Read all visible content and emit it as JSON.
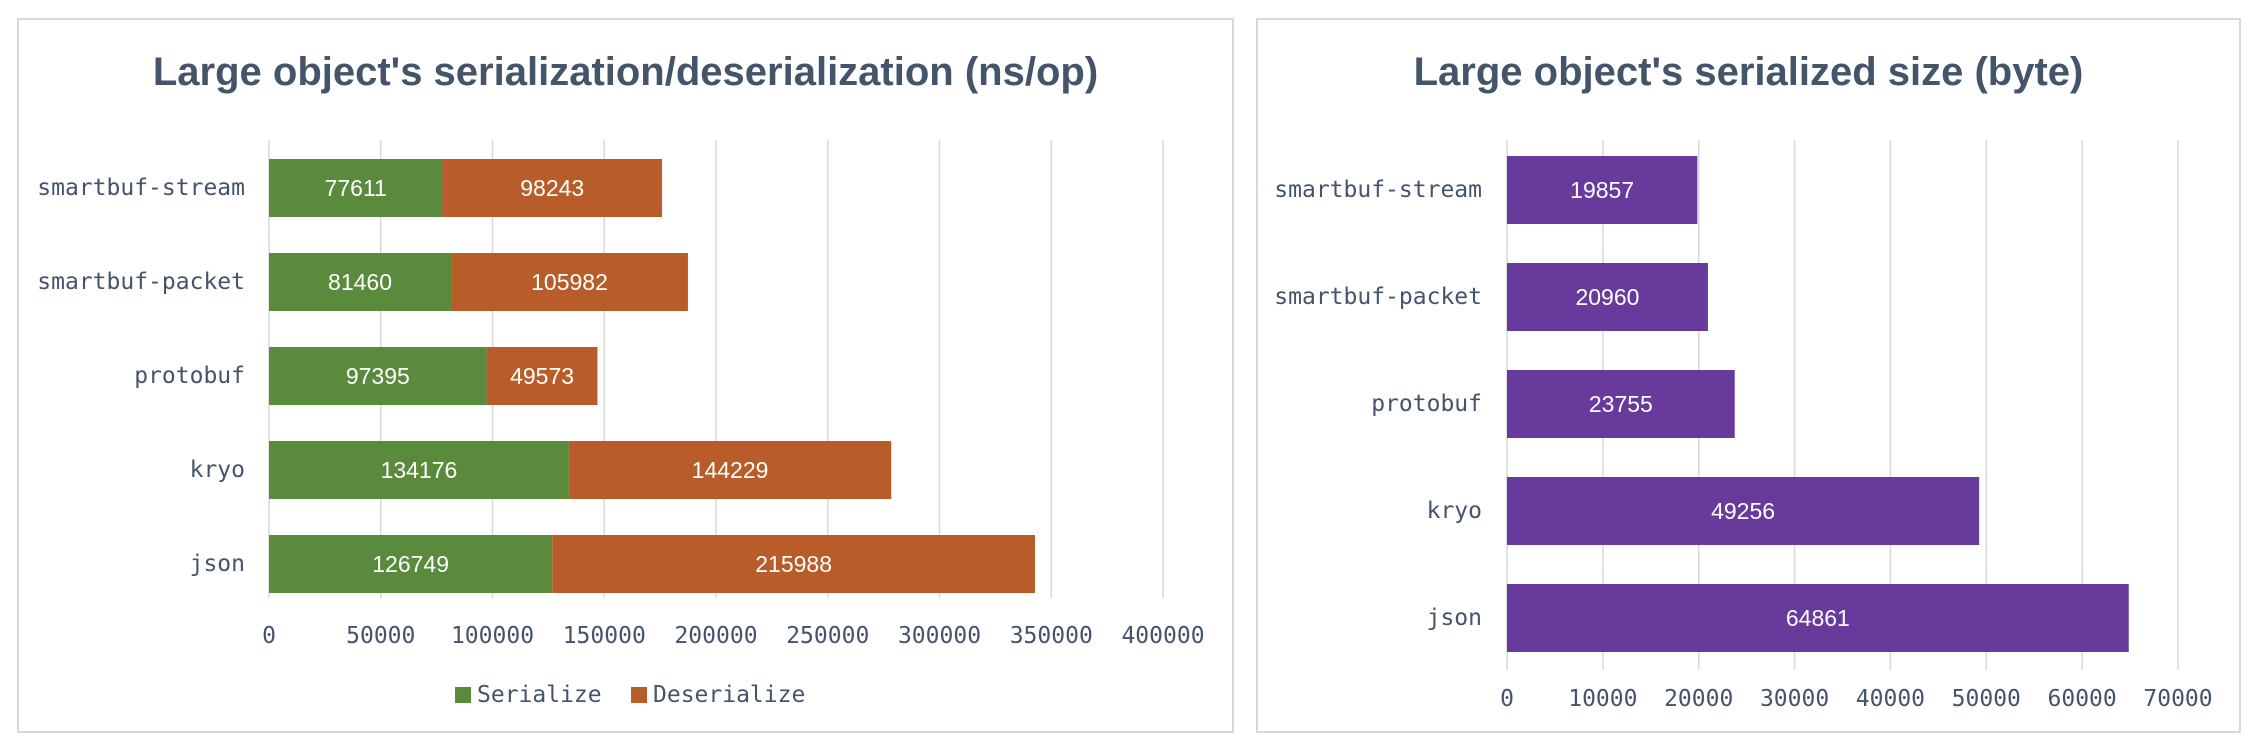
{
  "chart_data": [
    {
      "type": "bar",
      "orientation": "horizontal",
      "stacked": true,
      "title": "Large object's serialization/deserialization (ns/op)",
      "categories": [
        "smartbuf-stream",
        "smartbuf-packet",
        "protobuf",
        "kryo",
        "json"
      ],
      "series": [
        {
          "name": "Serialize",
          "values": [
            77611,
            81460,
            97395,
            134176,
            126749
          ],
          "color": "#5a8a3c"
        },
        {
          "name": "Deserialize",
          "values": [
            98243,
            105982,
            49573,
            144229,
            215988
          ],
          "color": "#b85c2a"
        }
      ],
      "xlim": [
        0,
        400000
      ],
      "xticks": [
        0,
        50000,
        100000,
        150000,
        200000,
        250000,
        300000,
        350000,
        400000
      ],
      "grid": "vertical",
      "legend": "bottom"
    },
    {
      "type": "bar",
      "orientation": "horizontal",
      "title": "Large object's serialized size (byte)",
      "categories": [
        "smartbuf-stream",
        "smartbuf-packet",
        "protobuf",
        "kryo",
        "json"
      ],
      "series": [
        {
          "values": [
            19857,
            20960,
            23755,
            49256,
            64861
          ],
          "color": "#673a9c"
        }
      ],
      "xlim": [
        0,
        70000
      ],
      "xticks": [
        0,
        10000,
        20000,
        30000,
        40000,
        50000,
        60000,
        70000
      ],
      "grid": "vertical",
      "legend": "none"
    }
  ]
}
